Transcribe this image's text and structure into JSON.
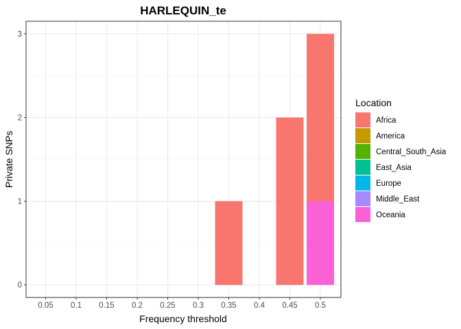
{
  "chart_data": {
    "type": "bar",
    "stacked": true,
    "title": "HARLEQUIN_te",
    "xlabel": "Frequency threshold",
    "ylabel": "Private SNPs",
    "categories": [
      "0.05",
      "0.1",
      "0.15",
      "0.2",
      "0.25",
      "0.3",
      "0.35",
      "0.4",
      "0.45",
      "0.5"
    ],
    "yticks": [
      0,
      1,
      2,
      3
    ],
    "ylim": [
      -0.15,
      3.15
    ],
    "grid": true,
    "legend_title": "Location",
    "legend_position": "right",
    "series": [
      {
        "name": "Africa",
        "color": "#F8766D",
        "values": [
          0,
          0,
          0,
          0,
          0,
          0,
          1,
          0,
          2,
          2
        ]
      },
      {
        "name": "America",
        "color": "#C49A00",
        "values": [
          0,
          0,
          0,
          0,
          0,
          0,
          0,
          0,
          0,
          0
        ]
      },
      {
        "name": "Central_South_Asia",
        "color": "#53B400",
        "values": [
          0,
          0,
          0,
          0,
          0,
          0,
          0,
          0,
          0,
          0
        ]
      },
      {
        "name": "East_Asia",
        "color": "#00C094",
        "values": [
          0,
          0,
          0,
          0,
          0,
          0,
          0,
          0,
          0,
          0
        ]
      },
      {
        "name": "Europe",
        "color": "#00B6EB",
        "values": [
          0,
          0,
          0,
          0,
          0,
          0,
          0,
          0,
          0,
          0
        ]
      },
      {
        "name": "Middle_East",
        "color": "#A58AFF",
        "values": [
          0,
          0,
          0,
          0,
          0,
          0,
          0,
          0,
          0,
          0
        ]
      },
      {
        "name": "Oceania",
        "color": "#FB61D7",
        "values": [
          0,
          0,
          0,
          0,
          0,
          0,
          0,
          0,
          0,
          1
        ]
      }
    ]
  }
}
